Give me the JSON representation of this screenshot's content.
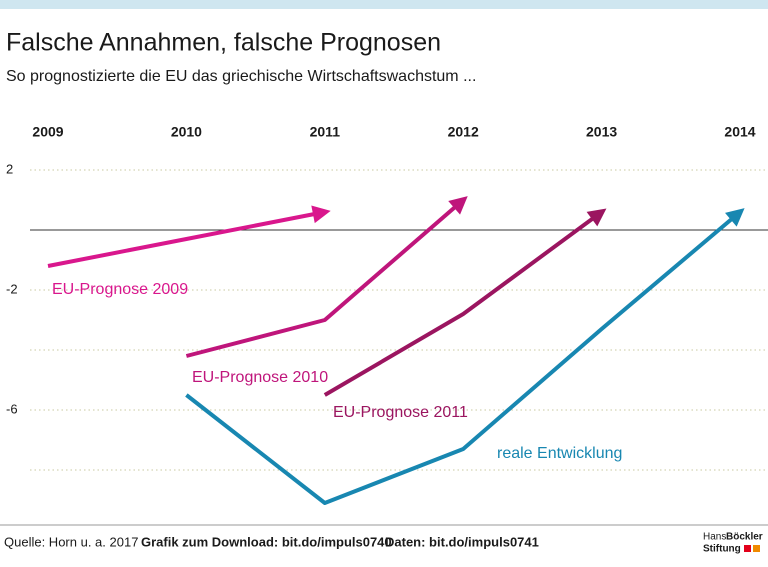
{
  "chart_data": {
    "type": "line",
    "title": "Falsche Annahmen, falsche Prognosen",
    "subtitle": "So prognostizierte die EU das griechische Wirtschaftswachstum ...",
    "x": [
      2009,
      2010,
      2011,
      2012,
      2013,
      2014
    ],
    "xlim": [
      2009,
      2014
    ],
    "xticks": [
      2009,
      2010,
      2011,
      2012,
      2013,
      2014
    ],
    "ylim": [
      -9.5,
      2.5
    ],
    "yticks": [
      2,
      -2,
      -6
    ],
    "minor_yticks": [
      -4,
      -8
    ],
    "grid": true,
    "series": [
      {
        "name": "EU-Prognose 2009",
        "color": "#d9178d",
        "values": [
          -1.2,
          -0.3,
          0.6,
          null,
          null,
          null
        ]
      },
      {
        "name": "EU-Prognose 2010",
        "color": "#bf157b",
        "values": [
          null,
          -4.2,
          -3.0,
          1.0,
          null,
          null
        ]
      },
      {
        "name": "EU-Prognose 2011",
        "color": "#9b1560",
        "values": [
          null,
          null,
          -5.5,
          -2.8,
          0.6,
          null
        ]
      },
      {
        "name": "reale Entwicklung",
        "color": "#1887b1",
        "values": [
          null,
          -5.5,
          -9.1,
          -7.3,
          -3.3,
          0.6
        ]
      }
    ]
  },
  "footer": {
    "source": "Quelle: Horn u. a. 2017",
    "download": "Grafik zum Download: bit.do/impuls0740",
    "data": "Daten: bit.do/impuls0741",
    "logo_line1_a": "Hans",
    "logo_line1_b": "Böckler",
    "logo_line2": "Stiftung"
  }
}
